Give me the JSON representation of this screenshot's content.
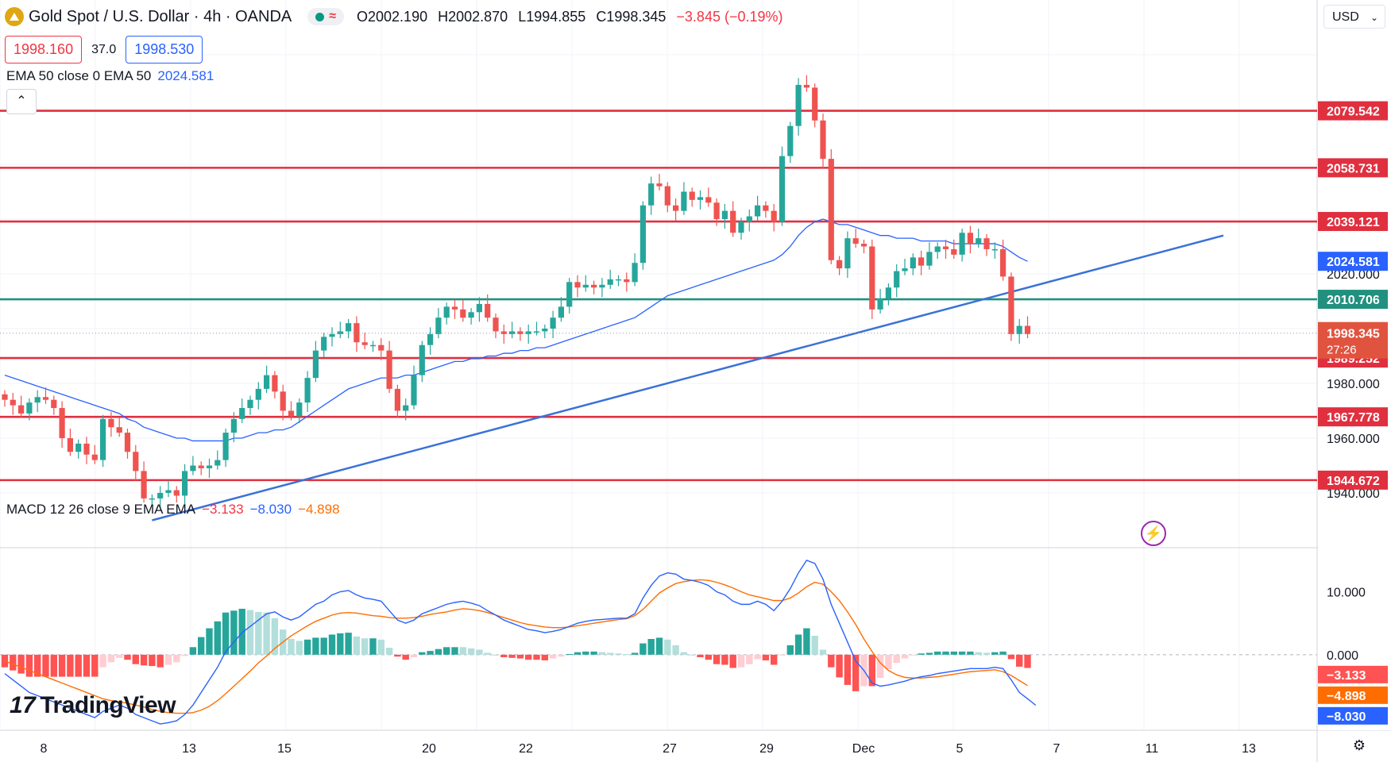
{
  "header": {
    "title": "Gold Spot / U.S. Dollar · 4h · OANDA",
    "open": "O2002.190",
    "high": "H2002.870",
    "low": "L1994.855",
    "close": "C1998.345",
    "change": "−3.845 (−0.19%)"
  },
  "quote": {
    "sell": "1998.160",
    "spread": "37.0",
    "buy": "1998.530"
  },
  "ema_legend": {
    "label": "EMA 50 close 0 EMA 50",
    "value": "2024.581"
  },
  "macd_legend": {
    "label": "MACD 12 26 close 9 EMA EMA",
    "hist": "−3.133",
    "macd": "−8.030",
    "signal": "−4.898"
  },
  "currency": "USD",
  "brand": "TradingView",
  "colors": {
    "up": "#26a69a",
    "down": "#ef5350",
    "level_red": "#e0303f",
    "level_green": "#22907f",
    "trendline": "#3a72d8",
    "ema": "#2962ff",
    "signal": "#ff6d00"
  },
  "chart_data": [
    {
      "type": "candlestick",
      "title": "Gold Spot / U.S. Dollar · 4h · OANDA",
      "ylim": [
        1920,
        2120
      ],
      "price_axis_ticks": [
        "2020.000",
        "1980.000",
        "1960.000",
        "1940.000"
      ],
      "time_ticks": [
        "8",
        "13",
        "15",
        "20",
        "22",
        "27",
        "29",
        "Dec",
        "5",
        "7",
        "11",
        "13"
      ],
      "horizontal_levels": [
        {
          "value": 2079.542,
          "label": "2079.542",
          "color": "red"
        },
        {
          "value": 2058.731,
          "label": "2058.731",
          "color": "red"
        },
        {
          "value": 2039.121,
          "label": "2039.121",
          "color": "red"
        },
        {
          "value": 2010.706,
          "label": "2010.706",
          "color": "green"
        },
        {
          "value": 1989.252,
          "label": "1989.252",
          "color": "red"
        },
        {
          "value": 1967.778,
          "label": "1967.778",
          "color": "red"
        },
        {
          "value": 1944.672,
          "label": "1944.672",
          "color": "red"
        }
      ],
      "ema50_last": {
        "value": 2024.581,
        "label": "2024.581"
      },
      "last_price": {
        "value": 1998.345,
        "label": "1998.345",
        "countdown": "27:26"
      },
      "trendline": {
        "start_price": 1930,
        "end_price": 2034
      },
      "closes": [
        1974,
        1972,
        1969,
        1973,
        1975,
        1974,
        1971,
        1960,
        1955,
        1958,
        1954,
        1952,
        1967,
        1964,
        1962,
        1955,
        1948,
        1938,
        1938,
        1940,
        1941,
        1939,
        1948,
        1950,
        1949,
        1950,
        1952,
        1962,
        1967,
        1971,
        1974,
        1978,
        1983,
        1977,
        1970,
        1968,
        1973,
        1982,
        1992,
        1997,
        1998,
        1999,
        2002,
        1995,
        1994,
        1994,
        1992,
        1978,
        1970,
        1972,
        1983,
        1994,
        1998,
        2004,
        2008,
        2007,
        2004,
        2006,
        2009,
        2004,
        1999,
        1998,
        1999,
        1998,
        1999,
        1999,
        2000,
        2004,
        2008,
        2017,
        2015,
        2016,
        2015,
        2016,
        2018,
        2018,
        2017,
        2024,
        2045,
        2053,
        2052,
        2045,
        2043,
        2050,
        2047,
        2048,
        2046,
        2040,
        2043,
        2035,
        2039,
        2041,
        2045,
        2043,
        2039,
        2063,
        2074,
        2089,
        2088,
        2076,
        2062,
        2025,
        2022,
        2033,
        2031,
        2030,
        2007,
        2011,
        2015,
        2021,
        2022,
        2026,
        2023,
        2028,
        2030,
        2029,
        2027,
        2035,
        2031,
        2033,
        2029,
        2029,
        2019,
        1998,
        2001,
        1998
      ],
      "ema50": [
        1983,
        1982,
        1981,
        1980,
        1979,
        1978,
        1977,
        1976,
        1975,
        1974,
        1973,
        1972,
        1971,
        1970,
        1969,
        1967,
        1966,
        1964,
        1963,
        1962,
        1961,
        1960,
        1960,
        1959,
        1959,
        1959,
        1959,
        1959,
        1960,
        1960,
        1961,
        1962,
        1962,
        1963,
        1963,
        1964,
        1966,
        1968,
        1970,
        1972,
        1974,
        1976,
        1978,
        1979,
        1980,
        1981,
        1982,
        1982,
        1982,
        1983,
        1983,
        1984,
        1985,
        1986,
        1987,
        1988,
        1988,
        1989,
        1989,
        1990,
        1990,
        1991,
        1991,
        1992,
        1992,
        1993,
        1993,
        1994,
        1995,
        1996,
        1997,
        1998,
        1999,
        2000,
        2001,
        2002,
        2003,
        2004,
        2006,
        2008,
        2010,
        2012,
        2013,
        2014,
        2015,
        2016,
        2017,
        2018,
        2019,
        2020,
        2021,
        2022,
        2023,
        2024,
        2025,
        2027,
        2030,
        2034,
        2037,
        2039,
        2040,
        2039,
        2038,
        2038,
        2037,
        2036,
        2035,
        2034,
        2034,
        2033,
        2033,
        2033,
        2032,
        2032,
        2032,
        2032,
        2031,
        2031,
        2031,
        2031,
        2031,
        2031,
        2030,
        2028,
        2026,
        2024.581
      ]
    },
    {
      "type": "macd",
      "series": [
        {
          "name": "MACD",
          "last": -8.03
        },
        {
          "name": "Signal",
          "last": -4.898
        },
        {
          "name": "Histogram",
          "last": -3.133
        }
      ],
      "ylim": [
        -12,
        17
      ],
      "axis_ticks": [
        "10.000",
        "0.000"
      ],
      "macd_values": [
        -3,
        -4,
        -5,
        -6,
        -6.5,
        -7,
        -7.5,
        -8,
        -8.5,
        -9,
        -9.5,
        -10,
        -9,
        -8.5,
        -8,
        -8.5,
        -9.5,
        -10,
        -10.5,
        -11,
        -10.8,
        -10.5,
        -9.5,
        -8,
        -6,
        -4,
        -2,
        0.5,
        2,
        3.5,
        4.5,
        5.5,
        6.5,
        6.8,
        6,
        5.5,
        6,
        7,
        8,
        8.5,
        9.5,
        10,
        10.2,
        9.5,
        9,
        8.8,
        8.5,
        7,
        5.5,
        5,
        5.5,
        6.5,
        7,
        7.5,
        8,
        8.3,
        8.5,
        8.2,
        7.8,
        7,
        6.3,
        5.5,
        5,
        4.5,
        4,
        3.8,
        3.5,
        3.7,
        4,
        4.5,
        5,
        5.3,
        5.5,
        5.6,
        5.7,
        5.8,
        5.8,
        6.5,
        9,
        11,
        12.5,
        13,
        12.8,
        12,
        11.8,
        11.5,
        11,
        10,
        9.5,
        8.5,
        8,
        8,
        8.5,
        8,
        7,
        8.5,
        10.5,
        13,
        15,
        14.5,
        12,
        8,
        5,
        2,
        -1,
        -2.5,
        -4.5,
        -5,
        -4.8,
        -4.5,
        -4.2,
        -3.8,
        -3.5,
        -3.3,
        -3,
        -2.8,
        -2.6,
        -2.4,
        -2.2,
        -2.2,
        -2.2,
        -2,
        -2.2,
        -4,
        -6,
        -7,
        -8.03
      ],
      "signal_values": [
        -1,
        -1.5,
        -2,
        -2.5,
        -3,
        -3.5,
        -4,
        -4.5,
        -5,
        -5.5,
        -6,
        -6.5,
        -7,
        -7.3,
        -7.5,
        -7.7,
        -8,
        -8.3,
        -8.7,
        -9,
        -9.2,
        -9.3,
        -9.3,
        -9.2,
        -8.8,
        -8.2,
        -7.3,
        -6.2,
        -5,
        -3.8,
        -2.6,
        -1.3,
        -0.2,
        1,
        2,
        3,
        3.8,
        4.6,
        5.3,
        5.8,
        6.3,
        6.6,
        6.7,
        6.6,
        6.4,
        6.2,
        6.1,
        5.9,
        5.8,
        5.8,
        5.9,
        6.1,
        6.4,
        6.6,
        6.8,
        7.1,
        7.3,
        7.2,
        7,
        6.7,
        6.3,
        5.9,
        5.5,
        5.1,
        4.8,
        4.6,
        4.4,
        4.3,
        4.3,
        4.4,
        4.6,
        4.8,
        5,
        5.2,
        5.4,
        5.6,
        5.7,
        6.2,
        7.2,
        8.5,
        9.8,
        10.6,
        11.3,
        11.6,
        11.8,
        11.9,
        11.8,
        11.5,
        11.1,
        10.6,
        10,
        9.5,
        9.2,
        8.9,
        8.6,
        8.6,
        9,
        9.8,
        10.8,
        11.5,
        11.2,
        10,
        8.6,
        6.8,
        4.8,
        2.5,
        0.5,
        -1.3,
        -2.5,
        -3.2,
        -3.6,
        -3.7,
        -3.7,
        -3.6,
        -3.5,
        -3.3,
        -3.1,
        -2.9,
        -2.7,
        -2.6,
        -2.5,
        -2.4,
        -2.7,
        -3.3,
        -4.1,
        -4.898
      ]
    }
  ]
}
